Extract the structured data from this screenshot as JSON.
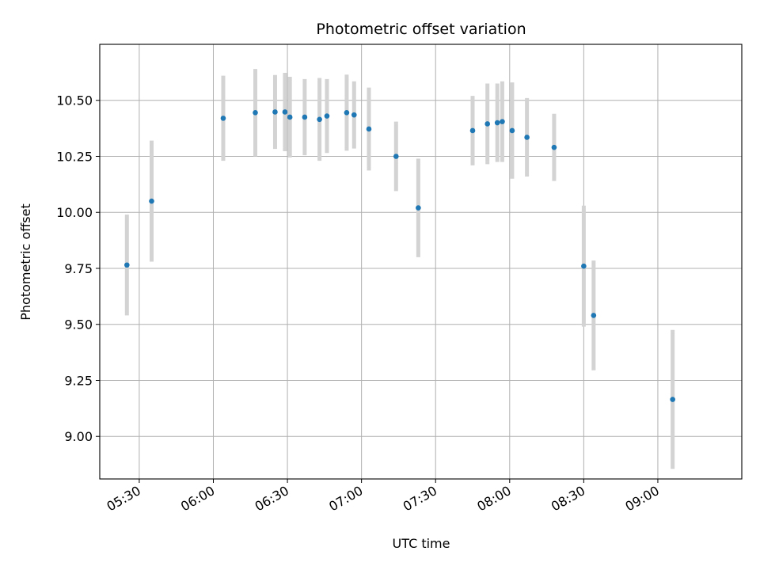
{
  "chart_data": {
    "type": "scatter",
    "title": "Photometric offset variation",
    "xlabel": "UTC time",
    "ylabel": "Photometric offset",
    "xlim": [
      "05:14",
      "09:34"
    ],
    "ylim": [
      8.81,
      10.75
    ],
    "grid": true,
    "x_ticks": [
      "05:30",
      "06:00",
      "06:30",
      "07:00",
      "07:30",
      "08:00",
      "08:30",
      "09:00"
    ],
    "y_ticks": [
      9.0,
      9.25,
      9.5,
      9.75,
      10.0,
      10.25,
      10.5
    ],
    "y_tick_labels": [
      "9.00",
      "9.25",
      "9.50",
      "9.75",
      "10.00",
      "10.25",
      "10.50"
    ],
    "marker_color": "#1f77b4",
    "errorbar_color": "#d3d3d3",
    "points": [
      {
        "time": "05:25",
        "y": 9.765,
        "err": 0.225
      },
      {
        "time": "05:35",
        "y": 10.05,
        "err": 0.27
      },
      {
        "time": "06:04",
        "y": 10.42,
        "err": 0.19
      },
      {
        "time": "06:17",
        "y": 10.445,
        "err": 0.195
      },
      {
        "time": "06:25",
        "y": 10.448,
        "err": 0.165
      },
      {
        "time": "06:29",
        "y": 10.448,
        "err": 0.175
      },
      {
        "time": "06:31",
        "y": 10.425,
        "err": 0.18
      },
      {
        "time": "06:37",
        "y": 10.425,
        "err": 0.17
      },
      {
        "time": "06:43",
        "y": 10.415,
        "err": 0.185
      },
      {
        "time": "06:46",
        "y": 10.43,
        "err": 0.165
      },
      {
        "time": "06:54",
        "y": 10.445,
        "err": 0.17
      },
      {
        "time": "06:57",
        "y": 10.435,
        "err": 0.15
      },
      {
        "time": "07:03",
        "y": 10.372,
        "err": 0.185
      },
      {
        "time": "07:14",
        "y": 10.25,
        "err": 0.155
      },
      {
        "time": "07:23",
        "y": 10.02,
        "err": 0.22
      },
      {
        "time": "07:45",
        "y": 10.365,
        "err": 0.155
      },
      {
        "time": "07:51",
        "y": 10.395,
        "err": 0.18
      },
      {
        "time": "07:55",
        "y": 10.4,
        "err": 0.175
      },
      {
        "time": "07:57",
        "y": 10.405,
        "err": 0.18
      },
      {
        "time": "08:01",
        "y": 10.365,
        "err": 0.215
      },
      {
        "time": "08:07",
        "y": 10.335,
        "err": 0.175
      },
      {
        "time": "08:18",
        "y": 10.29,
        "err": 0.15
      },
      {
        "time": "08:30",
        "y": 9.76,
        "err": 0.27
      },
      {
        "time": "08:34",
        "y": 9.54,
        "err": 0.245
      },
      {
        "time": "09:06",
        "y": 9.165,
        "err": 0.31
      }
    ]
  }
}
